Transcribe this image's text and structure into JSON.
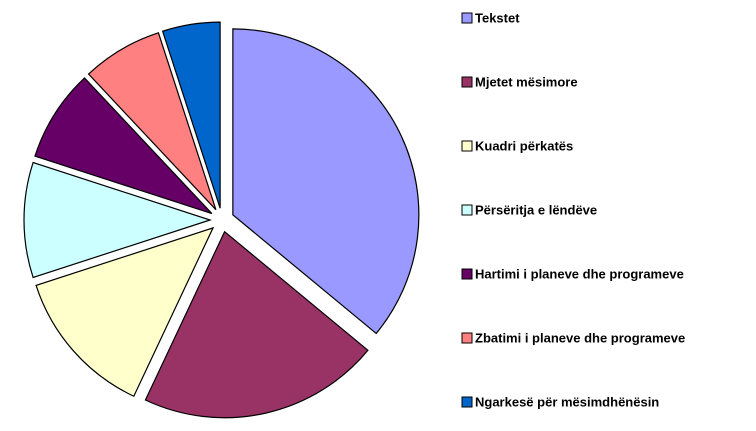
{
  "chart_data": {
    "type": "pie",
    "categories": [
      "Tekstet",
      "Mjetet mësimore",
      "Kuadri përkatës",
      "Përsëritja e lëndëve",
      "Hartimi i planeve dhe programeve",
      "Zbatimi i planeve dhe programeve",
      "Ngarkesë për mësimdhënësin"
    ],
    "values": [
      36,
      21,
      13,
      10,
      8,
      7,
      5
    ],
    "colors": [
      "#9999ff",
      "#993366",
      "#ffffcc",
      "#ccffff",
      "#660066",
      "#ff8080",
      "#0066cc"
    ],
    "legend": "right"
  }
}
